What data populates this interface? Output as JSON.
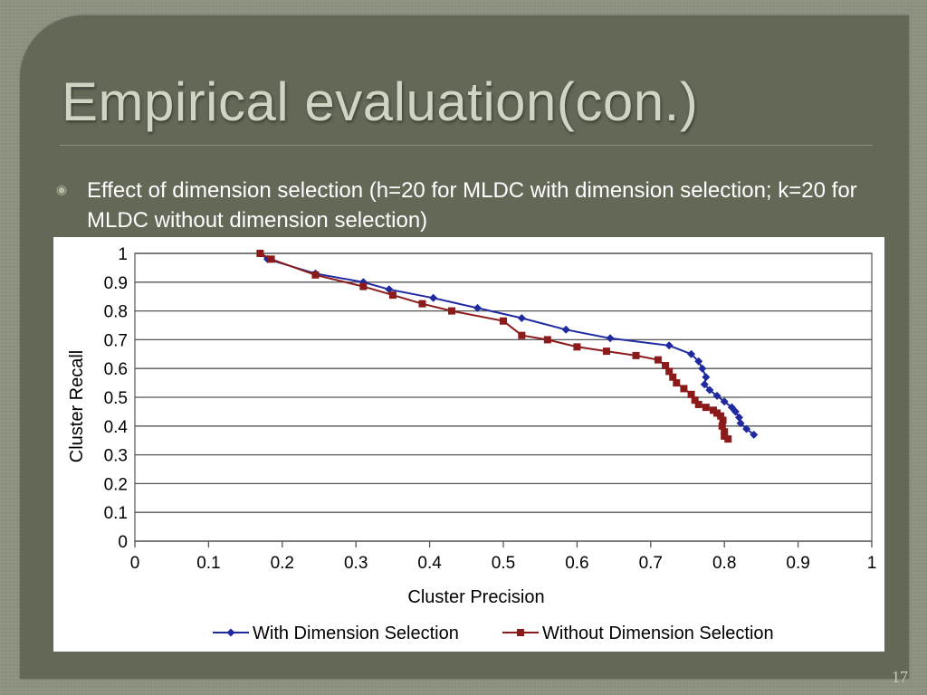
{
  "slide": {
    "title": "Empirical evaluation(con.)",
    "bullet": "Effect of dimension selection (h=20 for MLDC with dimension selection; k=20 for MLDC without dimension selection)",
    "page_number": "17"
  },
  "colors": {
    "slide_bg": "#636857",
    "title": "#cfd4c4",
    "series_with": "#1f2aa0",
    "series_without": "#8b1a1a"
  },
  "chart_data": {
    "type": "line",
    "title": "",
    "xlabel": "Cluster Precision",
    "ylabel": "Cluster Recall",
    "xlim": [
      0,
      1
    ],
    "ylim": [
      0,
      1
    ],
    "xticks": [
      "0",
      "0.1",
      "0.2",
      "0.3",
      "0.4",
      "0.5",
      "0.6",
      "0.7",
      "0.8",
      "0.9",
      "1"
    ],
    "yticks": [
      "0",
      "0.1",
      "0.2",
      "0.3",
      "0.4",
      "0.5",
      "0.6",
      "0.7",
      "0.8",
      "0.9",
      "1"
    ],
    "grid": "horizontal",
    "legend_position": "bottom",
    "series": [
      {
        "name": "With Dimension Selection",
        "marker": "diamond",
        "color": "#1f2aa0",
        "points": [
          [
            0.17,
            1.0
          ],
          [
            0.18,
            0.98
          ],
          [
            0.245,
            0.93
          ],
          [
            0.31,
            0.9
          ],
          [
            0.345,
            0.875
          ],
          [
            0.405,
            0.845
          ],
          [
            0.465,
            0.81
          ],
          [
            0.525,
            0.775
          ],
          [
            0.585,
            0.735
          ],
          [
            0.645,
            0.705
          ],
          [
            0.725,
            0.68
          ],
          [
            0.755,
            0.65
          ],
          [
            0.765,
            0.625
          ],
          [
            0.77,
            0.6
          ],
          [
            0.775,
            0.57
          ],
          [
            0.773,
            0.545
          ],
          [
            0.78,
            0.525
          ],
          [
            0.79,
            0.505
          ],
          [
            0.8,
            0.485
          ],
          [
            0.81,
            0.465
          ],
          [
            0.815,
            0.45
          ],
          [
            0.82,
            0.43
          ],
          [
            0.822,
            0.41
          ],
          [
            0.83,
            0.39
          ],
          [
            0.84,
            0.37
          ]
        ]
      },
      {
        "name": "Without Dimension Selection",
        "marker": "square",
        "color": "#8b1a1a",
        "points": [
          [
            0.17,
            1.0
          ],
          [
            0.185,
            0.98
          ],
          [
            0.245,
            0.925
          ],
          [
            0.31,
            0.885
          ],
          [
            0.35,
            0.855
          ],
          [
            0.39,
            0.825
          ],
          [
            0.43,
            0.8
          ],
          [
            0.5,
            0.765
          ],
          [
            0.525,
            0.715
          ],
          [
            0.56,
            0.7
          ],
          [
            0.6,
            0.675
          ],
          [
            0.64,
            0.66
          ],
          [
            0.68,
            0.645
          ],
          [
            0.71,
            0.63
          ],
          [
            0.72,
            0.61
          ],
          [
            0.725,
            0.59
          ],
          [
            0.73,
            0.57
          ],
          [
            0.735,
            0.55
          ],
          [
            0.745,
            0.53
          ],
          [
            0.755,
            0.51
          ],
          [
            0.76,
            0.49
          ],
          [
            0.765,
            0.475
          ],
          [
            0.775,
            0.465
          ],
          [
            0.785,
            0.455
          ],
          [
            0.79,
            0.445
          ],
          [
            0.795,
            0.435
          ],
          [
            0.798,
            0.42
          ],
          [
            0.797,
            0.4
          ],
          [
            0.8,
            0.38
          ],
          [
            0.8,
            0.365
          ],
          [
            0.805,
            0.355
          ]
        ]
      }
    ]
  }
}
